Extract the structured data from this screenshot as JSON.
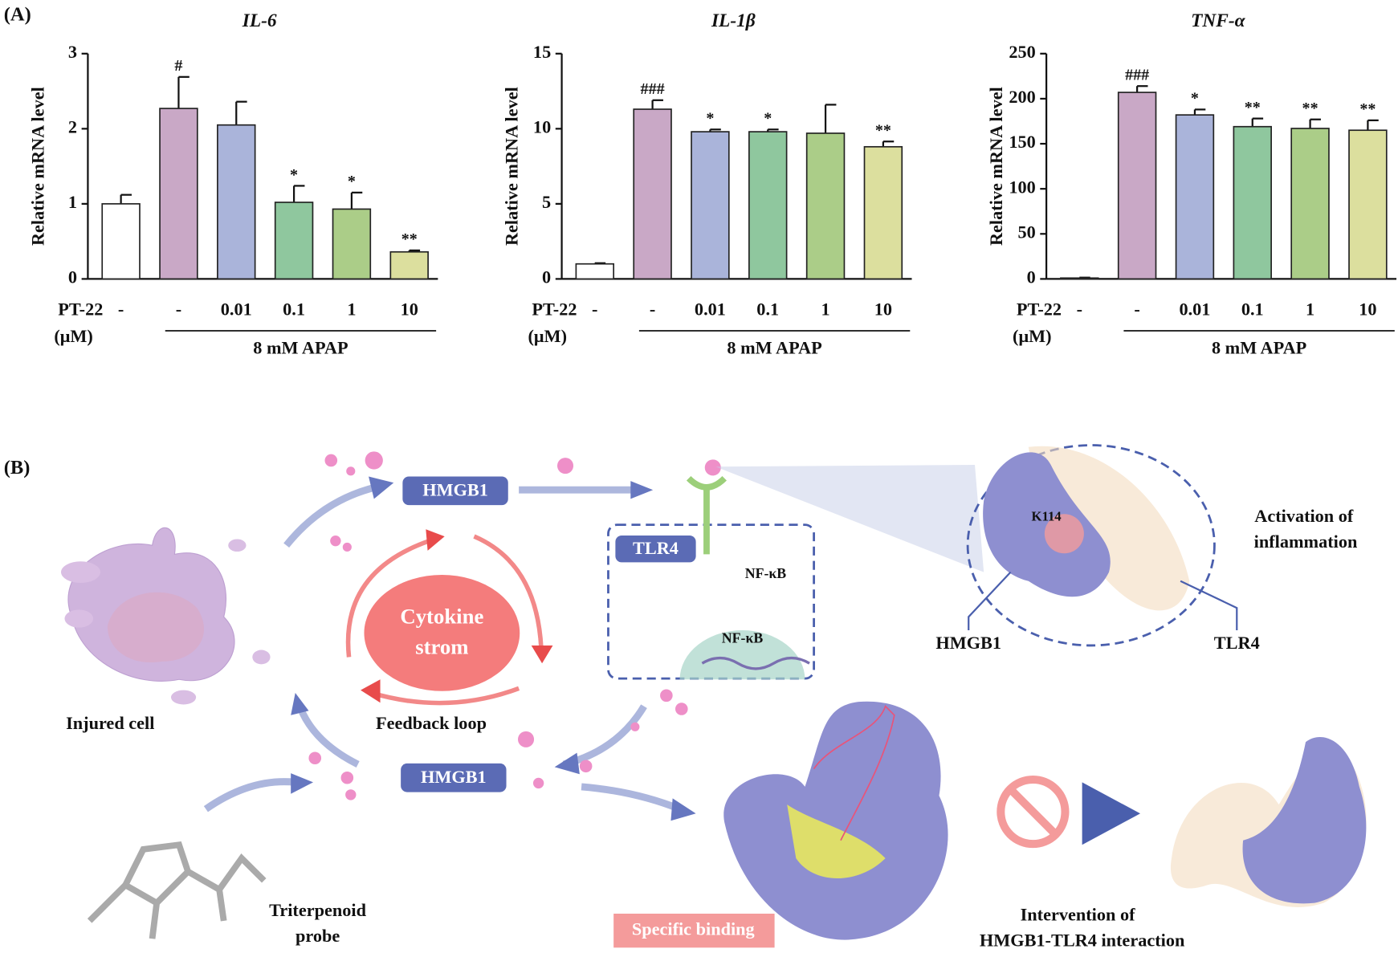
{
  "panel_labels": [
    "(A)",
    "(B)"
  ],
  "chart_data": [
    {
      "type": "bar",
      "title": "IL-6",
      "ylabel": "Relative mRNA level",
      "categories": [
        "-",
        "-",
        "0.01",
        "0.1",
        "1",
        "10"
      ],
      "values": [
        1.0,
        2.27,
        2.05,
        1.02,
        0.93,
        0.36
      ],
      "errors": [
        0.12,
        0.42,
        0.31,
        0.22,
        0.22,
        0.02
      ],
      "annotations": [
        null,
        "#",
        null,
        "*",
        "*",
        "**"
      ],
      "colors": [
        "#ffffff",
        "#c9a8c6",
        "#aab4da",
        "#8fc79e",
        "#abcd88",
        "#dcdf9e"
      ],
      "ylim": [
        0,
        3
      ],
      "yticks": [
        0,
        1,
        2,
        3
      ],
      "treatment_label": "PT-22",
      "unit_label": "(μM)",
      "group_label": "8 mM APAP"
    },
    {
      "type": "bar",
      "title": "IL-1β",
      "ylabel": "Relative mRNA level",
      "categories": [
        "-",
        "-",
        "0.01",
        "0.1",
        "1",
        "10"
      ],
      "values": [
        1.0,
        11.3,
        9.8,
        9.8,
        9.7,
        8.8
      ],
      "errors": [
        0.05,
        0.6,
        0.15,
        0.15,
        1.9,
        0.35
      ],
      "annotations": [
        null,
        "###",
        "*",
        "*",
        null,
        "**"
      ],
      "colors": [
        "#ffffff",
        "#c9a8c6",
        "#aab4da",
        "#8fc79e",
        "#abcd88",
        "#dcdf9e"
      ],
      "ylim": [
        0,
        15
      ],
      "yticks": [
        0,
        5,
        10,
        15
      ],
      "treatment_label": "PT-22",
      "unit_label": "(μM)",
      "group_label": "8 mM APAP"
    },
    {
      "type": "bar",
      "title": "TNF-α",
      "ylabel": "Relative mRNA level",
      "categories": [
        "-",
        "-",
        "0.01",
        "0.1",
        "1",
        "10"
      ],
      "values": [
        1,
        207,
        182,
        169,
        167,
        165
      ],
      "errors": [
        0.5,
        7,
        6,
        9,
        10,
        11
      ],
      "annotations": [
        null,
        "###",
        "*",
        "**",
        "**",
        "**"
      ],
      "colors": [
        "#ffffff",
        "#c9a8c6",
        "#aab4da",
        "#8fc79e",
        "#abcd88",
        "#dcdf9e"
      ],
      "ylim": [
        0,
        250
      ],
      "yticks": [
        0,
        50,
        100,
        150,
        200,
        250
      ],
      "treatment_label": "PT-22",
      "unit_label": "(μM)",
      "group_label": "8 mM APAP"
    }
  ],
  "diagram": {
    "labels": [
      "Injured cell",
      "HMGB1",
      "HMGB1",
      "Cytokine",
      "strom",
      "Feedback loop",
      "TLR4",
      "NF-κB",
      "NF-κB",
      "K114",
      "Activation of",
      "inflammation",
      "HMGB1",
      "TLR4",
      "Triterpenoid",
      "probe",
      "Specific binding",
      "Intervention of",
      "HMGB1-TLR4 interaction"
    ]
  }
}
